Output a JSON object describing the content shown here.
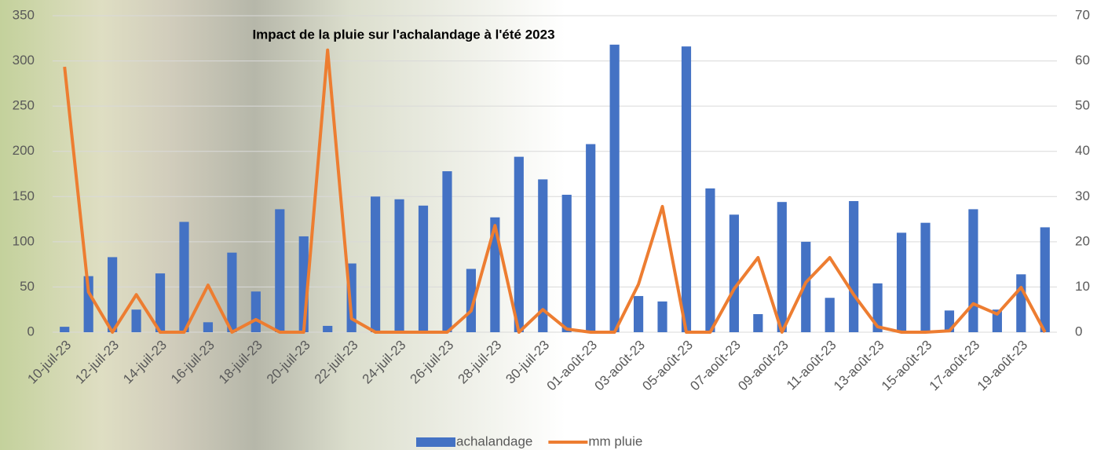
{
  "chart_data": {
    "type": "bar_line",
    "title": "Impact de la pluie sur l'achalandage à l'été 2023",
    "categories": [
      "10-juil-23",
      null,
      "12-juil-23",
      null,
      "14-juil-23",
      null,
      "16-juil-23",
      null,
      "18-juil-23",
      null,
      "20-juil-23",
      null,
      "22-juil-23",
      null,
      "24-juil-23",
      null,
      "26-juil-23",
      null,
      "28-juil-23",
      null,
      "30-juil-23",
      null,
      "01-août-23",
      null,
      "03-août-23",
      null,
      "05-août-23",
      null,
      "07-août-23",
      null,
      "09-août-23",
      null,
      "11-août-23",
      null,
      "13-août-23",
      null,
      "15-août-23",
      null,
      "17-août-23",
      null,
      "19-août-23",
      null
    ],
    "series": [
      {
        "name": "achalandage",
        "type": "bar",
        "color": "#4472c4",
        "values": [
          6,
          62,
          83,
          25,
          65,
          122,
          11,
          88,
          45,
          136,
          106,
          7,
          76,
          150,
          147,
          140,
          178,
          70,
          127,
          194,
          169,
          152,
          208,
          318,
          40,
          34,
          316,
          159,
          130,
          20,
          144,
          100,
          38,
          145,
          54,
          110,
          121,
          24,
          136,
          25,
          64,
          116
        ]
      },
      {
        "name": "mm pluie",
        "type": "line",
        "axis": "y2",
        "color": "#ed7d31",
        "values": [
          58.7,
          8.9,
          0,
          8.3,
          0,
          0,
          10.4,
          0,
          2.8,
          0,
          0,
          62.4,
          3,
          0,
          0,
          0,
          0,
          4.7,
          23.6,
          0,
          5,
          0.7,
          0,
          0,
          10.6,
          27.8,
          0,
          0,
          9.6,
          16.5,
          0,
          11,
          16.5,
          8.3,
          1.2,
          0,
          0,
          0.3,
          6.3,
          4,
          9.9,
          0
        ]
      }
    ],
    "ylim": [
      0,
      350
    ],
    "yticks": [
      0,
      50,
      100,
      150,
      200,
      250,
      300,
      350
    ],
    "y2lim": [
      0,
      70
    ],
    "y2ticks": [
      0,
      10,
      20,
      30,
      40,
      50,
      60,
      70
    ],
    "grid": true
  }
}
